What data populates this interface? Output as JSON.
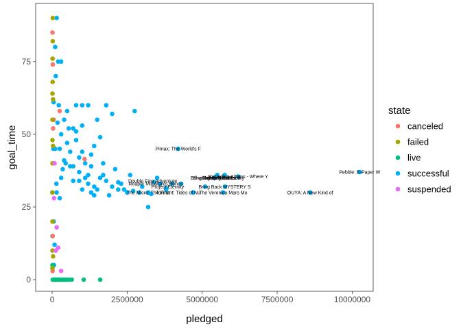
{
  "chart_data": {
    "type": "scatter",
    "xlabel": "pledged",
    "ylabel": "goal_time",
    "xlim": [
      -550000,
      10700000
    ],
    "ylim": [
      -4,
      95
    ],
    "x_ticks": [
      0,
      2500000,
      5000000,
      7500000,
      10000000
    ],
    "x_tick_labels": [
      "0",
      "2500000",
      "5000000",
      "7500000",
      "10000000"
    ],
    "y_ticks": [
      0,
      25,
      50,
      75
    ],
    "y_tick_labels": [
      "0",
      "25",
      "50",
      "75"
    ],
    "grid": false,
    "legend": {
      "title": "state",
      "placement": "right",
      "entries": [
        {
          "label": "canceled",
          "color": "#F8766D"
        },
        {
          "label": "failed",
          "color": "#A3A500"
        },
        {
          "label": "live",
          "color": "#00BF7D"
        },
        {
          "label": "successful",
          "color": "#00B0F6"
        },
        {
          "label": "suspended",
          "color": "#E76BF3"
        }
      ]
    },
    "series": [
      {
        "state": "successful",
        "color": "#00B0F6",
        "points": [
          [
            10250000,
            37
          ],
          [
            8600000,
            30
          ],
          [
            5750000,
            36
          ],
          [
            5400000,
            35
          ],
          [
            5500000,
            36
          ],
          [
            5700000,
            30
          ],
          [
            5760000,
            32
          ],
          [
            6200000,
            35.5
          ],
          [
            4200000,
            45
          ],
          [
            3800000,
            31
          ],
          [
            3400000,
            33.5
          ],
          [
            3500000,
            35
          ],
          [
            3200000,
            30
          ],
          [
            3200000,
            25
          ],
          [
            2750000,
            58
          ],
          [
            2900000,
            30
          ],
          [
            2500000,
            30
          ],
          [
            2200000,
            31
          ],
          [
            2200000,
            33.5
          ],
          [
            2000000,
            32
          ],
          [
            1800000,
            34
          ],
          [
            1700000,
            36
          ],
          [
            1500000,
            31
          ],
          [
            1300000,
            30
          ],
          [
            1200000,
            33
          ],
          [
            1100000,
            35
          ],
          [
            1000000,
            31
          ],
          [
            1000000,
            60
          ],
          [
            1200000,
            60
          ],
          [
            1800000,
            60
          ],
          [
            1600000,
            49
          ],
          [
            1400000,
            46
          ],
          [
            1300000,
            43
          ],
          [
            900000,
            37
          ],
          [
            900000,
            42
          ],
          [
            800000,
            48
          ],
          [
            800000,
            60
          ],
          [
            700000,
            34
          ],
          [
            600000,
            39
          ],
          [
            500000,
            58
          ],
          [
            400000,
            55
          ],
          [
            300000,
            35
          ],
          [
            300000,
            75
          ],
          [
            200000,
            75
          ],
          [
            150000,
            30
          ],
          [
            250000,
            28
          ],
          [
            150000,
            90
          ],
          [
            100000,
            80
          ],
          [
            50000,
            61
          ],
          [
            50000,
            20
          ],
          [
            80000,
            12
          ],
          [
            60000,
            5
          ],
          [
            40000,
            45
          ],
          [
            100000,
            45
          ],
          [
            250000,
            45
          ],
          [
            400000,
            41
          ],
          [
            500000,
            47
          ],
          [
            700000,
            52
          ],
          [
            1000000,
            53
          ],
          [
            1500000,
            55
          ],
          [
            2000000,
            57
          ],
          [
            2300000,
            33
          ],
          [
            2600000,
            36
          ],
          [
            3000000,
            32
          ],
          [
            3600000,
            33
          ],
          [
            3800000,
            31.5
          ],
          [
            4000000,
            33
          ],
          [
            1400000,
            29
          ],
          [
            1900000,
            29
          ],
          [
            2100000,
            38
          ],
          [
            1700000,
            40
          ],
          [
            1300000,
            39
          ],
          [
            1100000,
            40
          ],
          [
            1400000,
            32
          ],
          [
            1000000,
            44
          ],
          [
            800000,
            51
          ],
          [
            600000,
            44
          ],
          [
            700000,
            39
          ],
          [
            900000,
            34
          ],
          [
            1200000,
            36
          ],
          [
            450000,
            40
          ],
          [
            350000,
            38
          ],
          [
            550000,
            52
          ],
          [
            300000,
            50
          ],
          [
            180000,
            54
          ],
          [
            220000,
            60
          ],
          [
            140000,
            33
          ],
          [
            120000,
            70
          ],
          [
            1600000,
            35
          ],
          [
            2400000,
            31
          ],
          [
            2700000,
            30.5
          ],
          [
            3300000,
            29.5
          ],
          [
            4300000,
            33
          ],
          [
            4700000,
            30
          ],
          [
            5100000,
            32
          ]
        ]
      },
      {
        "state": "live",
        "color": "#00BF7D",
        "points": [
          [
            1600000,
            0
          ],
          [
            1050000,
            0
          ],
          [
            650000,
            0
          ],
          [
            550000,
            0
          ],
          [
            480000,
            0
          ],
          [
            420000,
            0
          ],
          [
            360000,
            0
          ],
          [
            300000,
            0
          ],
          [
            250000,
            0
          ],
          [
            200000,
            0
          ],
          [
            160000,
            0
          ],
          [
            130000,
            0
          ],
          [
            100000,
            0
          ],
          [
            70000,
            0
          ],
          [
            40000,
            0
          ],
          [
            20000,
            0
          ],
          [
            10000,
            5
          ],
          [
            10000,
            15
          ],
          [
            5000,
            30
          ]
        ]
      },
      {
        "state": "canceled",
        "color": "#F8766D",
        "points": [
          [
            1080000,
            41.5
          ],
          [
            250000,
            58
          ],
          [
            50000,
            55
          ],
          [
            30000,
            52
          ],
          [
            20000,
            74
          ],
          [
            20000,
            15
          ],
          [
            15000,
            3
          ],
          [
            10000,
            85
          ]
        ]
      },
      {
        "state": "failed",
        "color": "#A3A500",
        "points": [
          [
            20000,
            90
          ],
          [
            20000,
            82
          ],
          [
            15000,
            76
          ],
          [
            15000,
            68
          ],
          [
            10000,
            64
          ],
          [
            10000,
            55
          ],
          [
            10000,
            48
          ],
          [
            10000,
            40
          ],
          [
            10000,
            30
          ],
          [
            10000,
            20
          ],
          [
            10000,
            10
          ],
          [
            10000,
            4
          ],
          [
            30000,
            62
          ],
          [
            30000,
            46
          ],
          [
            30000,
            8
          ]
        ]
      },
      {
        "state": "suspended",
        "color": "#E76BF3",
        "points": [
          [
            300000,
            3
          ],
          [
            200000,
            11
          ],
          [
            150000,
            18
          ],
          [
            120000,
            10
          ],
          [
            80000,
            40
          ],
          [
            60000,
            28
          ]
        ]
      }
    ],
    "annotations": [
      {
        "text": "Pebble: E-Paper W",
        "x": 10250000,
        "y": 37
      },
      {
        "text": "OUYA: A New Kind of",
        "x": 8600000,
        "y": 30
      },
      {
        "text": "Pimax: The World's F",
        "x": 4200000,
        "y": 45
      },
      {
        "text": "Bring Back MYSTERY S",
        "x": 5750000,
        "y": 32
      },
      {
        "text": "Shadowrun Returns",
        "x": 5400000,
        "y": 35
      },
      {
        "text": "Bring Reading Rainbow",
        "x": 5450000,
        "y": 35
      },
      {
        "text": "Mighty No. 9",
        "x": 5450000,
        "y": 35
      },
      {
        "text": "Pillars of Eternity",
        "x": 5800000,
        "y": 35
      },
      {
        "text": "Double Fine Adventure",
        "x": 3350000,
        "y": 34
      },
      {
        "text": "Reaper Miniatures Bones",
        "x": 3450000,
        "y": 33
      },
      {
        "text": "Project Eternity",
        "x": 3850000,
        "y": 32
      },
      {
        "text": "The Micro: The First",
        "x": 3200000,
        "y": 30
      },
      {
        "text": "Torment: Tides of Nu",
        "x": 4200000,
        "y": 30
      },
      {
        "text": "The Veronica Mars Mo",
        "x": 5700000,
        "y": 30
      },
      {
        "text": "Exploding Kittens - Where Y",
        "x": 6200000,
        "y": 35.5
      }
    ]
  }
}
